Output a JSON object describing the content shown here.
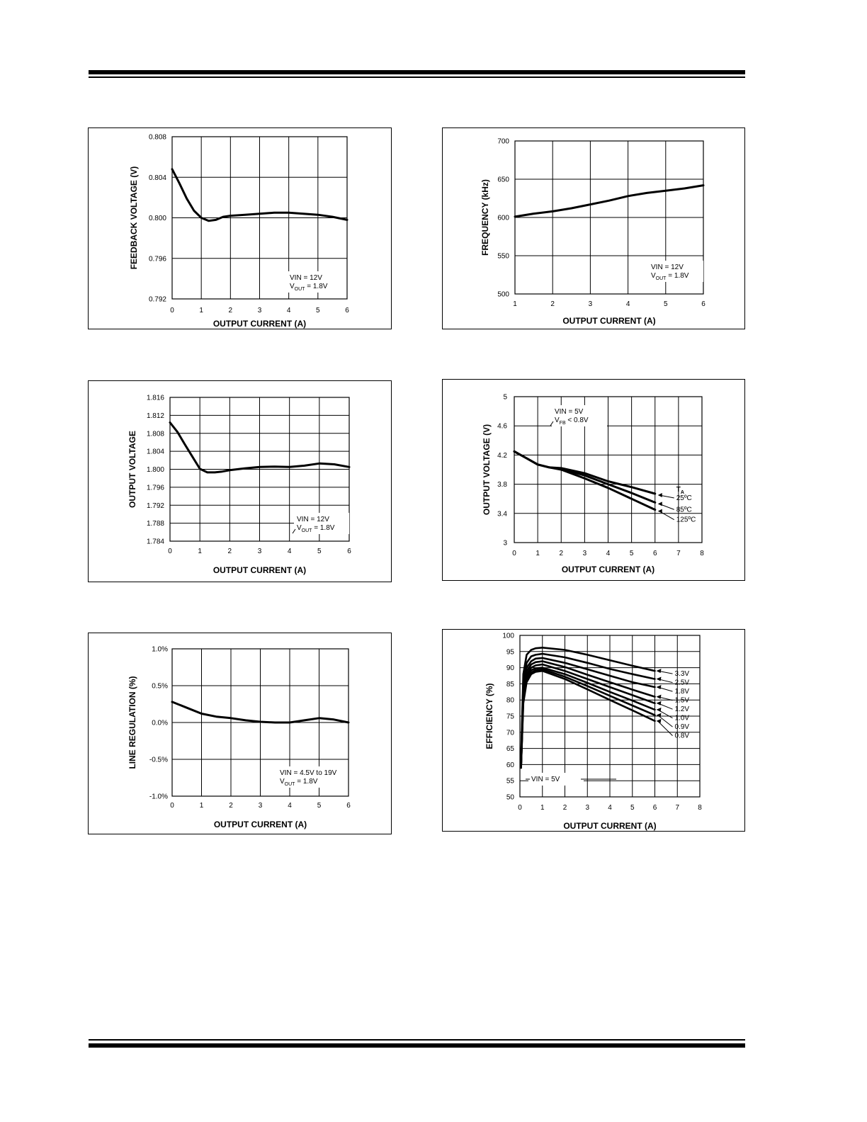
{
  "chart_data": [
    {
      "id": "c1",
      "type": "line",
      "xlabel": "OUTPUT CURRENT (A)",
      "ylabel": "FEEDBACK VOLTAGE (V)",
      "xlim": [
        0,
        6
      ],
      "ylim": [
        0.792,
        0.808
      ],
      "xticks": [
        0,
        1,
        2,
        3,
        4,
        5,
        6
      ],
      "xtick_labels": [
        "0",
        "1",
        "2",
        "3",
        "4",
        "5",
        "6"
      ],
      "yticks": [
        0.792,
        0.796,
        0.8,
        0.804,
        0.808
      ],
      "ytick_labels": [
        "0.792",
        "0.796",
        "0.800",
        "0.804",
        "0.808"
      ],
      "grid": true,
      "annotation": [
        {
          "main": "VIN = 12V"
        },
        {
          "main": "V",
          "sub": "OUT",
          "rest": " = 1.8V"
        }
      ],
      "series": [
        {
          "x": [
            0,
            0.25,
            0.5,
            0.75,
            1.0,
            1.25,
            1.5,
            1.75,
            2,
            2.5,
            3,
            3.5,
            4,
            4.5,
            5,
            5.5,
            6
          ],
          "y": [
            0.8048,
            0.8034,
            0.8019,
            0.8007,
            0.8,
            0.7997,
            0.7998,
            0.8001,
            0.8002,
            0.8003,
            0.8004,
            0.8005,
            0.8005,
            0.8004,
            0.8003,
            0.8001,
            0.7998
          ]
        }
      ]
    },
    {
      "id": "c2",
      "type": "line",
      "xlabel": "OUTPUT CURRENT (A)",
      "ylabel": "FREQUENCY (kHz)",
      "xlim": [
        1,
        6
      ],
      "ylim": [
        500,
        700
      ],
      "xticks": [
        1,
        2,
        3,
        4,
        5,
        6
      ],
      "xtick_labels": [
        "1",
        "2",
        "3",
        "4",
        "5",
        "6"
      ],
      "yticks": [
        500,
        550,
        600,
        650,
        700
      ],
      "ytick_labels": [
        "500",
        "550",
        "600",
        "650",
        "700"
      ],
      "grid": true,
      "annotation": [
        {
          "main": "VIN = 12V"
        },
        {
          "main": "V",
          "sub": "OUT",
          "rest": " = 1.8V"
        }
      ],
      "series": [
        {
          "x": [
            1,
            1.5,
            2,
            2.5,
            3,
            3.5,
            4,
            4.5,
            5,
            5.5,
            6
          ],
          "y": [
            601,
            605,
            608,
            612,
            617,
            622,
            628,
            632,
            635,
            638,
            642
          ]
        }
      ]
    },
    {
      "id": "c3",
      "type": "line",
      "xlabel": "OUTPUT CURRENT (A)",
      "ylabel": "OUTPUT VOLTAGE",
      "xlim": [
        0,
        6
      ],
      "ylim": [
        1.784,
        1.816
      ],
      "xticks": [
        0,
        1,
        2,
        3,
        4,
        5,
        6
      ],
      "xtick_labels": [
        "0",
        "1",
        "2",
        "3",
        "4",
        "5",
        "6"
      ],
      "yticks": [
        1.784,
        1.788,
        1.792,
        1.796,
        1.8,
        1.804,
        1.808,
        1.812,
        1.816
      ],
      "ytick_labels": [
        "1.784",
        "1.788",
        "1.792",
        "1.796",
        "1.800",
        "1.804",
        "1.808",
        "1.812",
        "1.816"
      ],
      "grid": true,
      "annotation": [
        {
          "main": "VIN = 12V"
        },
        {
          "main": "V",
          "sub": "OUT",
          "rest": " = 1.8V"
        }
      ],
      "series": [
        {
          "x": [
            0,
            0.25,
            0.5,
            0.75,
            1.0,
            1.25,
            1.5,
            1.75,
            2,
            2.5,
            3,
            3.5,
            4,
            4.5,
            5,
            5.5,
            6
          ],
          "y": [
            1.8104,
            1.8083,
            1.8055,
            1.8028,
            1.8001,
            1.7993,
            1.7993,
            1.7995,
            1.7998,
            1.8002,
            1.8005,
            1.8006,
            1.8005,
            1.8008,
            1.8013,
            1.8011,
            1.8005
          ]
        }
      ]
    },
    {
      "id": "c4",
      "type": "line",
      "xlabel": "OUTPUT CURRENT (A)",
      "ylabel": "OUTPUT VOLTAGE (V)",
      "xlim": [
        0,
        8
      ],
      "ylim": [
        3,
        5
      ],
      "xticks": [
        0,
        1,
        2,
        3,
        4,
        5,
        6,
        7,
        8
      ],
      "xtick_labels": [
        "0",
        "1",
        "2",
        "3",
        "4",
        "5",
        "6",
        "7",
        "8"
      ],
      "yticks": [
        3,
        3.4,
        3.8,
        4.2,
        4.6,
        5
      ],
      "ytick_labels": [
        "3",
        "3.4",
        "3.8",
        "4.2",
        "4.6",
        "5"
      ],
      "grid": true,
      "annotation": [
        {
          "main": "VIN = 5V"
        },
        {
          "main": "V",
          "sub": "FB",
          "rest": " < 0.8V"
        }
      ],
      "legend_title": "T",
      "legend_title_sub": "A",
      "series": [
        {
          "name": "25ºC",
          "x": [
            0,
            0.5,
            1,
            1.5,
            2,
            3,
            4,
            5,
            6
          ],
          "y": [
            4.25,
            4.16,
            4.07,
            4.03,
            4.02,
            3.95,
            3.84,
            3.76,
            3.67
          ]
        },
        {
          "name": "85ºC",
          "x": [
            0,
            0.5,
            1,
            1.5,
            2,
            3,
            4,
            5,
            6
          ],
          "y": [
            4.25,
            4.16,
            4.07,
            4.03,
            4.01,
            3.92,
            3.8,
            3.68,
            3.55
          ]
        },
        {
          "name": "125ºC",
          "x": [
            0,
            0.5,
            1,
            1.5,
            2,
            3,
            4,
            5,
            6
          ],
          "y": [
            4.25,
            4.16,
            4.07,
            4.03,
            4.0,
            3.88,
            3.75,
            3.6,
            3.45
          ]
        }
      ]
    },
    {
      "id": "c5",
      "type": "line",
      "xlabel": "OUTPUT CURRENT (A)",
      "ylabel": "LINE REGULATION (%)",
      "xlim": [
        0,
        6
      ],
      "ylim": [
        -1.0,
        1.0
      ],
      "xticks": [
        0,
        1,
        2,
        3,
        4,
        5,
        6
      ],
      "xtick_labels": [
        "0",
        "1",
        "2",
        "3",
        "4",
        "5",
        "6"
      ],
      "yticks": [
        -1.0,
        -0.5,
        0.0,
        0.5,
        1.0
      ],
      "ytick_labels": [
        "-1.0%",
        "-0.5%",
        "0.0%",
        "0.5%",
        "1.0%"
      ],
      "grid": true,
      "annotation": [
        {
          "main": "VIN = 4.5V to 19V"
        },
        {
          "main": "V",
          "sub": "OUT",
          "rest": " = 1.8V"
        }
      ],
      "series": [
        {
          "x": [
            0,
            0.5,
            1,
            1.5,
            2,
            2.5,
            3,
            3.5,
            4,
            4.5,
            5,
            5.5,
            6
          ],
          "y": [
            0.28,
            0.2,
            0.12,
            0.08,
            0.06,
            0.03,
            0.01,
            0.0,
            0.0,
            0.03,
            0.06,
            0.04,
            0.0
          ]
        }
      ]
    },
    {
      "id": "c6",
      "type": "line",
      "xlabel": "OUTPUT CURRENT (A)",
      "ylabel": "EFFICIENCY (%)",
      "xlim": [
        0,
        8
      ],
      "ylim": [
        50,
        100
      ],
      "xticks": [
        0,
        1,
        2,
        3,
        4,
        5,
        6,
        7,
        8
      ],
      "xtick_labels": [
        "0",
        "1",
        "2",
        "3",
        "4",
        "5",
        "6",
        "7",
        "8"
      ],
      "yticks": [
        50,
        55,
        60,
        65,
        70,
        75,
        80,
        85,
        90,
        95,
        100
      ],
      "ytick_labels": [
        "50",
        "55",
        "60",
        "65",
        "70",
        "75",
        "80",
        "85",
        "90",
        "95",
        "100"
      ],
      "grid": true,
      "annotation": [
        {
          "main": "VIN =  5V"
        }
      ],
      "series": [
        {
          "name": "3.3V",
          "x": [
            0.05,
            0.15,
            0.3,
            0.5,
            0.7,
            1,
            2,
            3,
            4,
            5,
            6
          ],
          "y": [
            62,
            88,
            94,
            95.5,
            96,
            96.2,
            95.5,
            94,
            92.3,
            90.6,
            89
          ]
        },
        {
          "name": "2.5V",
          "x": [
            0.05,
            0.15,
            0.3,
            0.5,
            0.7,
            1,
            2,
            3,
            4,
            5,
            6
          ],
          "y": [
            61,
            86,
            91.5,
            93.5,
            94,
            94.3,
            93.2,
            91.5,
            89.6,
            88,
            86.5
          ]
        },
        {
          "name": "1.8V",
          "x": [
            0.05,
            0.15,
            0.3,
            0.5,
            0.7,
            1,
            2,
            3,
            4,
            5,
            6
          ],
          "y": [
            60,
            84,
            90,
            92,
            92.8,
            93,
            91.5,
            89.5,
            87.5,
            85.5,
            84
          ]
        },
        {
          "name": "1.5V",
          "x": [
            0.05,
            0.15,
            0.3,
            0.5,
            0.7,
            1,
            2,
            3,
            4,
            5,
            6
          ],
          "y": [
            59.5,
            83,
            88.8,
            91,
            91.7,
            92,
            90.2,
            87.8,
            85.5,
            83.2,
            81
          ]
        },
        {
          "name": "1.2V",
          "x": [
            0.05,
            0.15,
            0.3,
            0.5,
            0.7,
            1,
            2,
            3,
            4,
            5,
            6
          ],
          "y": [
            59,
            82,
            87.8,
            90,
            90.7,
            91,
            89,
            86.5,
            84,
            81.5,
            79
          ]
        },
        {
          "name": "1.0V",
          "x": [
            0.05,
            0.15,
            0.3,
            0.5,
            0.7,
            1,
            2,
            3,
            4,
            5,
            6
          ],
          "y": [
            59,
            81,
            87,
            89.2,
            89.8,
            90,
            88,
            85.3,
            82.5,
            79.8,
            77
          ]
        },
        {
          "name": "0.9V",
          "x": [
            0.05,
            0.15,
            0.3,
            0.5,
            0.7,
            1,
            2,
            3,
            4,
            5,
            6
          ],
          "y": [
            59,
            80,
            86,
            88.5,
            89.2,
            89.5,
            87.2,
            84.3,
            81.3,
            78.3,
            75.3
          ]
        },
        {
          "name": "0.8V",
          "x": [
            0.05,
            0.15,
            0.3,
            0.5,
            0.7,
            1,
            2,
            3,
            4,
            5,
            6
          ],
          "y": [
            59,
            79,
            85.5,
            88,
            88.7,
            89,
            86.5,
            83.3,
            80,
            76.8,
            73.5
          ]
        }
      ]
    }
  ]
}
